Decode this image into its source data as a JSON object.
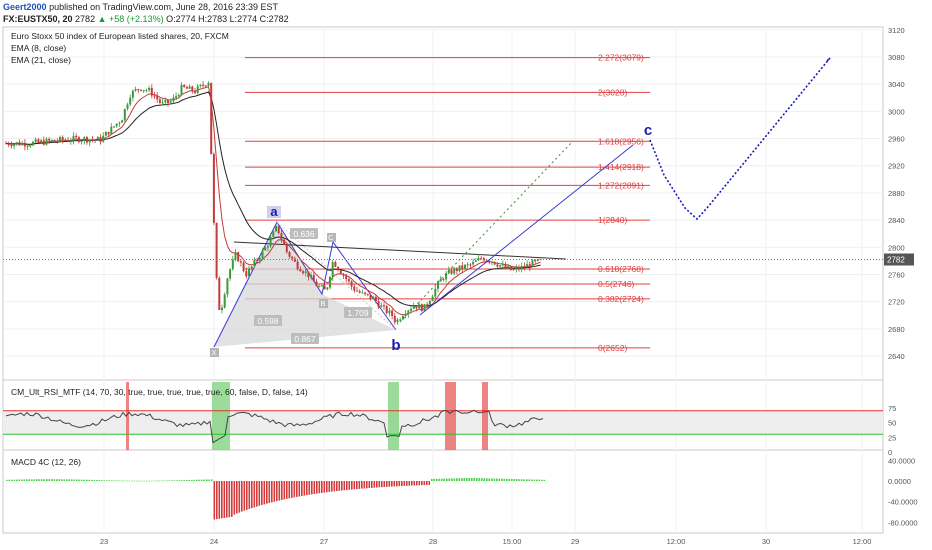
{
  "header": {
    "author": "Geert2000",
    "published": "published on TradingView.com, June 28, 2016 23:39 EST",
    "symbol": "FX:EUSTX50, 20",
    "last": "2782",
    "change": "+58 (+2.13%)",
    "ohlc": "O:2774 H:2783 L:2774 C:2782"
  },
  "panes": {
    "main_title": "Euro Stoxx 50 index of European listed shares, 20, FXCM",
    "ema8": "EMA (8, close)",
    "ema21": "EMA (21, close)",
    "rsi_title": "CM_Ult_RSI_MTF (14, 70, 30, true, true, true, true, true, 60, false, D, false, 14)",
    "macd_title": "MACD 4C (12, 26)"
  },
  "colors": {
    "up": "#3c9a3c",
    "down": "#c23b3b",
    "fib": "#e04040",
    "pattern_line": "#3a3ad6",
    "projection": "#1a1ab0",
    "ema_fast": "#c23b3b",
    "ema_slow": "#222222",
    "rsi_line": "#444444",
    "macd_pos": "#46d246",
    "macd_neg": "#d23c3c",
    "last_price_tag": "#555555"
  },
  "chart_data": [
    {
      "type": "candlestick",
      "title": "Euro Stoxx 50 index of European listed shares, 20, FXCM",
      "price_axis": {
        "min": 2620,
        "max": 3120,
        "ticks": [
          2640,
          2680,
          2720,
          2760,
          2800,
          2840,
          2880,
          2920,
          2960,
          3000,
          3040,
          3080,
          3120
        ]
      },
      "time_axis_labels": [
        "23",
        "24",
        "27",
        "28",
        "15:00",
        "29",
        "12:00",
        "30",
        "12:00"
      ],
      "last_price": 2782,
      "fibonacci_levels": [
        {
          "label": "2.272(3079)",
          "value": 3079
        },
        {
          "label": "2(3028)",
          "value": 3028
        },
        {
          "label": "1.618(2956)",
          "value": 2956
        },
        {
          "label": "1.414(2918)",
          "value": 2918
        },
        {
          "label": "1.272(2891)",
          "value": 2891
        },
        {
          "label": "1(2840)",
          "value": 2840
        },
        {
          "label": "0.618(2768)",
          "value": 2768
        },
        {
          "label": "0.5(2746)",
          "value": 2746
        },
        {
          "label": "0.382(2724)",
          "value": 2724
        },
        {
          "label": "0(2652)",
          "value": 2652
        }
      ],
      "pattern_points": [
        {
          "label": "X",
          "price": 2652
        },
        {
          "label": "a",
          "price": 2840
        },
        {
          "label": "B",
          "price": 2730
        },
        {
          "label": "C",
          "price": 2800
        },
        {
          "label": "D",
          "price": 2690
        }
      ],
      "pattern_ratios": [
        "0.636",
        "0.598",
        "1.709",
        "0.867"
      ],
      "wave_labels": [
        "a",
        "b",
        "c"
      ],
      "series": [
        {
          "name": "EMA (8, close)"
        },
        {
          "name": "EMA (21, close)"
        }
      ]
    },
    {
      "type": "line",
      "title": "CM_Ult_RSI_MTF (14, 70, 30, true, true, true, true, true, 60, false, D, false, 14)",
      "y_axis": {
        "min": 0,
        "max": 100,
        "ticks": [
          0,
          25,
          50,
          75
        ]
      },
      "overbought": 70,
      "oversold": 30
    },
    {
      "type": "bar",
      "title": "MACD 4C (12, 26)",
      "y_axis": {
        "min": -90,
        "max": 50,
        "ticks": [
          "40.0000",
          "0.0000",
          "-40.0000",
          "-80.0000"
        ]
      }
    }
  ]
}
